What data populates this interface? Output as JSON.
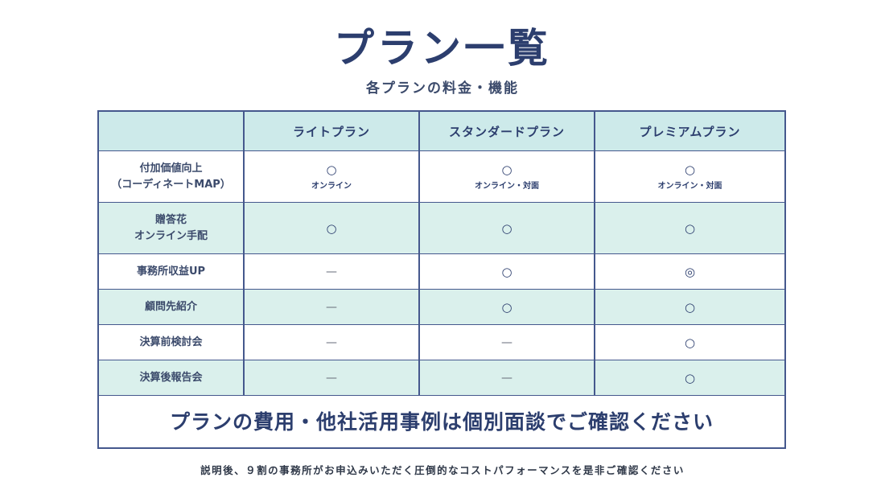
{
  "title": "プラン一覧",
  "subtitle": "各プランの料金・機能",
  "table": {
    "headers": [
      "",
      "ライトプラン",
      "スタンダードプラン",
      "プレミアムプラン"
    ],
    "rows": [
      {
        "label_line1": "付加価値向上",
        "label_line2": "（コーディネートMAP）",
        "cells": [
          {
            "mark": "○",
            "note": "オンライン"
          },
          {
            "mark": "○",
            "note": "オンライン・対面"
          },
          {
            "mark": "○",
            "note": "オンライン・対面"
          }
        ]
      },
      {
        "label_line1": "贈答花",
        "label_line2": "オンライン手配",
        "cells": [
          {
            "mark": "○"
          },
          {
            "mark": "○"
          },
          {
            "mark": "○"
          }
        ]
      },
      {
        "label_line1": "事務所収益UP",
        "cells": [
          {
            "mark": "—"
          },
          {
            "mark": "○"
          },
          {
            "mark": "◎"
          }
        ]
      },
      {
        "label_line1": "顧問先紹介",
        "cells": [
          {
            "mark": "—"
          },
          {
            "mark": "○"
          },
          {
            "mark": "○"
          }
        ]
      },
      {
        "label_line1": "決算前検討会",
        "cells": [
          {
            "mark": "—"
          },
          {
            "mark": "—"
          },
          {
            "mark": "○"
          }
        ]
      },
      {
        "label_line1": "決算後報告会",
        "cells": [
          {
            "mark": "—"
          },
          {
            "mark": "—"
          },
          {
            "mark": "○"
          }
        ]
      }
    ],
    "footer": "プランの費用・他社活用事例は個別面談でご確認ください"
  },
  "bottom_note": "説明後、９割の事務所がお申込みいただく圧倒的なコストパフォーマンスを是非ご確認ください",
  "colors": {
    "title": "#2c3e6e",
    "border": "#45588d",
    "header_bg": "#cdeaea",
    "tint_row_bg": "#daf0ec"
  }
}
